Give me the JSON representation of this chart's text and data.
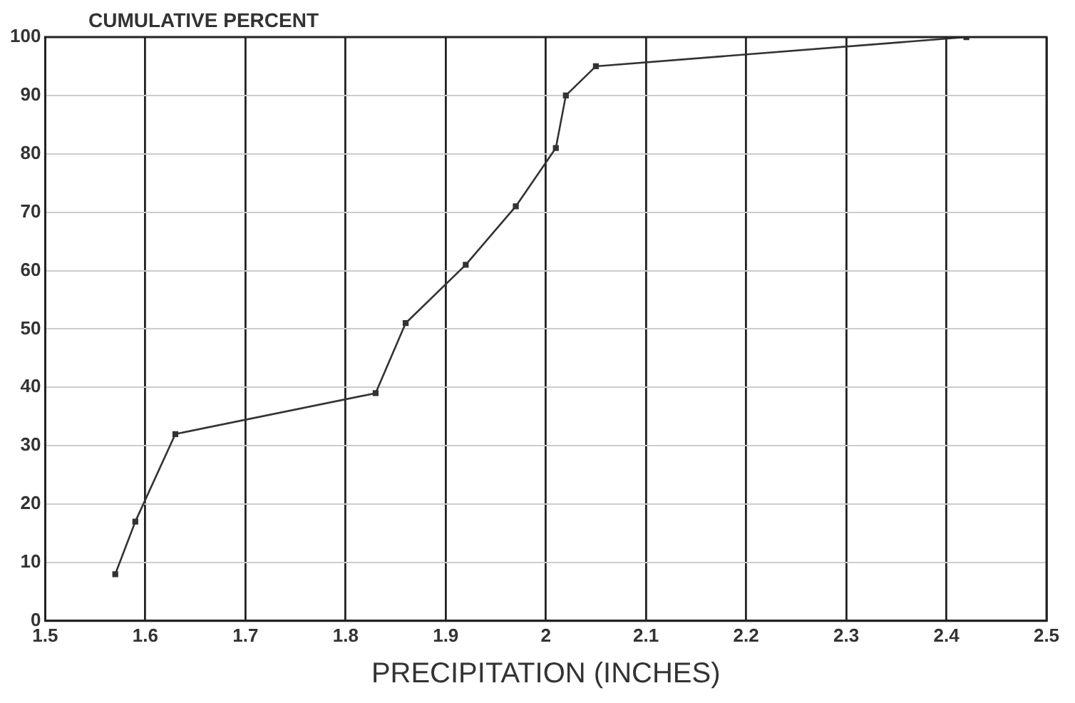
{
  "chart_data": {
    "type": "line",
    "ylabel": "CUMULATIVE PERCENT",
    "xlabel": "PRECIPITATION (INCHES)",
    "x": [
      1.57,
      1.59,
      1.63,
      1.83,
      1.86,
      1.92,
      1.97,
      2.01,
      2.02,
      2.05,
      2.42
    ],
    "series": [
      {
        "color": "#333333",
        "values": [
          8,
          17,
          32,
          39,
          51,
          61,
          71,
          81,
          90,
          95,
          100
        ]
      }
    ],
    "xlim": [
      1.5,
      2.5
    ],
    "xticks": [
      1.5,
      1.6,
      1.7,
      1.8,
      1.9,
      2,
      2.1,
      2.2,
      2.3,
      2.4,
      2.5
    ],
    "ylim": [
      0,
      100
    ],
    "yticks": [
      0,
      10,
      20,
      30,
      40,
      50,
      60,
      70,
      80,
      90,
      100
    ],
    "grid": true,
    "marker": "square",
    "line_style": "solid",
    "legend": false
  }
}
